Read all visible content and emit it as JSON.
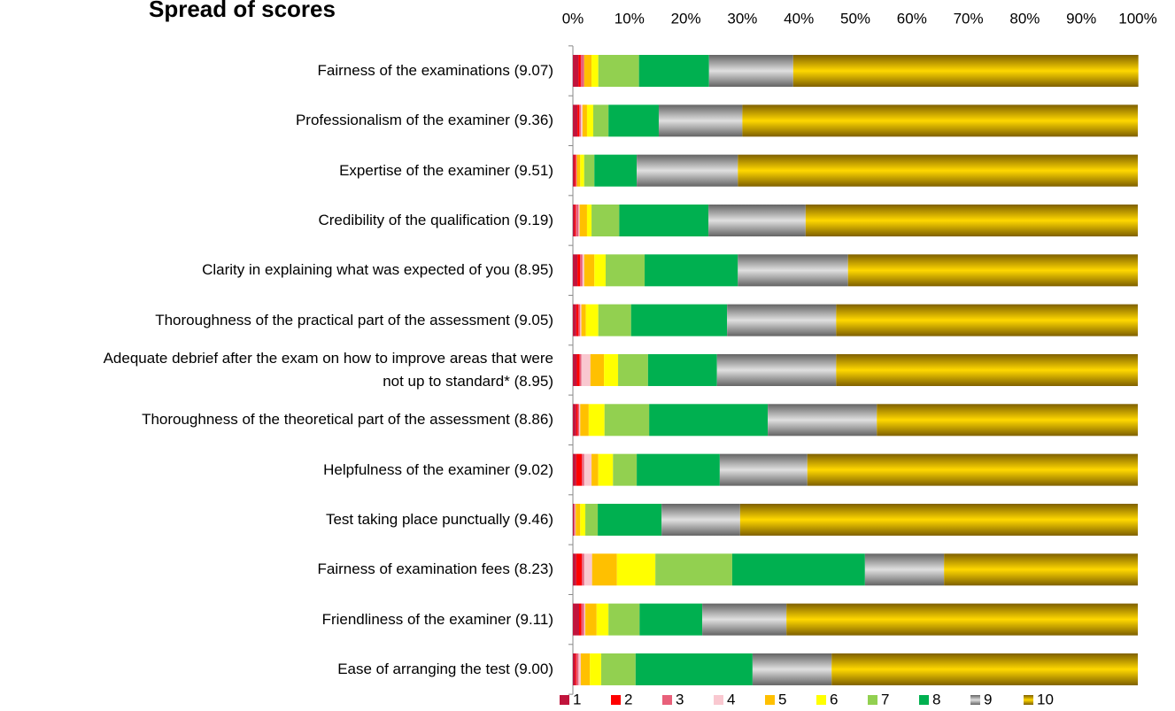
{
  "chart_data": {
    "type": "stacked_barh_100",
    "title": "Spread of scores",
    "categories": [
      "Fairness of the examinations (9.07)",
      "Professionalism of the examiner (9.36)",
      "Expertise of the examiner (9.51)",
      "Credibility of the qualification (9.19)",
      "Clarity in explaining what was expected of you (8.95)",
      "Thoroughness of the practical part of the assessment (9.05)",
      "Adequate debrief after the exam on how to improve areas that were\nnot up to standard* (8.95)",
      "Thoroughness of the theoretical part of the assessment (8.86)",
      "Helpfulness of the examiner (9.02)",
      "Test taking place punctually  (9.46)",
      "Fairness of examination fees (8.23)",
      "Friendliness of the examiner (9.11)",
      "Ease of arranging the test (9.00)"
    ],
    "series": [
      {
        "name": "1",
        "color": "#c0143c",
        "values": [
          1.0,
          0.8,
          0.3,
          0.3,
          0.8,
          0.6,
          0.7,
          0.6,
          0.6,
          0.2,
          0.6,
          1.1,
          0.4
        ]
      },
      {
        "name": "2",
        "color": "#ff0000",
        "values": [
          0.4,
          0.3,
          0.2,
          0.2,
          0.5,
          0.4,
          0.5,
          0.3,
          1.0,
          0.0,
          1.0,
          0.4,
          0.2
        ]
      },
      {
        "name": "3",
        "color": "#e8607a",
        "values": [
          0.6,
          0.3,
          0.2,
          0.5,
          0.4,
          0.3,
          0.3,
          0.2,
          0.4,
          0.2,
          0.4,
          0.5,
          0.4
        ]
      },
      {
        "name": "4",
        "color": "#f9c8d0",
        "values": [
          0.0,
          0.3,
          0.0,
          0.2,
          0.3,
          0.2,
          1.6,
          0.2,
          1.3,
          0.1,
          1.4,
          0.2,
          0.4
        ]
      },
      {
        "name": "5",
        "color": "#ffc000",
        "values": [
          1.3,
          0.8,
          0.6,
          1.3,
          1.8,
          0.8,
          2.4,
          1.5,
          1.2,
          0.8,
          4.4,
          2.0,
          1.6
        ]
      },
      {
        "name": "6",
        "color": "#ffff00",
        "values": [
          1.2,
          1.1,
          0.7,
          0.8,
          2.0,
          2.2,
          2.5,
          2.8,
          2.6,
          0.9,
          6.8,
          2.1,
          2.0
        ]
      },
      {
        "name": "7",
        "color": "#92d050",
        "values": [
          7.2,
          2.7,
          1.8,
          4.9,
          6.9,
          5.8,
          5.3,
          7.9,
          4.2,
          2.2,
          13.6,
          5.5,
          6.1
        ]
      },
      {
        "name": "8",
        "color": "#00b050",
        "values": [
          12.4,
          8.9,
          7.5,
          15.8,
          16.5,
          17.0,
          12.2,
          21.0,
          14.7,
          11.3,
          23.5,
          11.1,
          20.7
        ]
      },
      {
        "name": "9",
        "color": "#a6a6a6",
        "gradient": true,
        "values": [
          14.9,
          14.8,
          17.9,
          17.2,
          19.5,
          19.3,
          21.1,
          19.3,
          15.5,
          13.9,
          14.0,
          14.9,
          14.0
        ]
      },
      {
        "name": "10",
        "color": "#d4a000",
        "gradient": true,
        "values": [
          61.1,
          70.0,
          70.8,
          58.8,
          51.3,
          53.4,
          53.4,
          46.2,
          58.5,
          70.4,
          34.3,
          62.2,
          54.2
        ]
      }
    ],
    "xlim": [
      0,
      100
    ],
    "xticks": [
      {
        "value": 0,
        "label": "0%"
      },
      {
        "value": 10,
        "label": "10%"
      },
      {
        "value": 20,
        "label": "20%"
      },
      {
        "value": 30,
        "label": "30%"
      },
      {
        "value": 40,
        "label": "40%"
      },
      {
        "value": 50,
        "label": "50%"
      },
      {
        "value": 60,
        "label": "60%"
      },
      {
        "value": 70,
        "label": "70%"
      },
      {
        "value": 80,
        "label": "80%"
      },
      {
        "value": 90,
        "label": "90%"
      },
      {
        "value": 100,
        "label": "100%"
      }
    ],
    "legend": "bottom"
  }
}
